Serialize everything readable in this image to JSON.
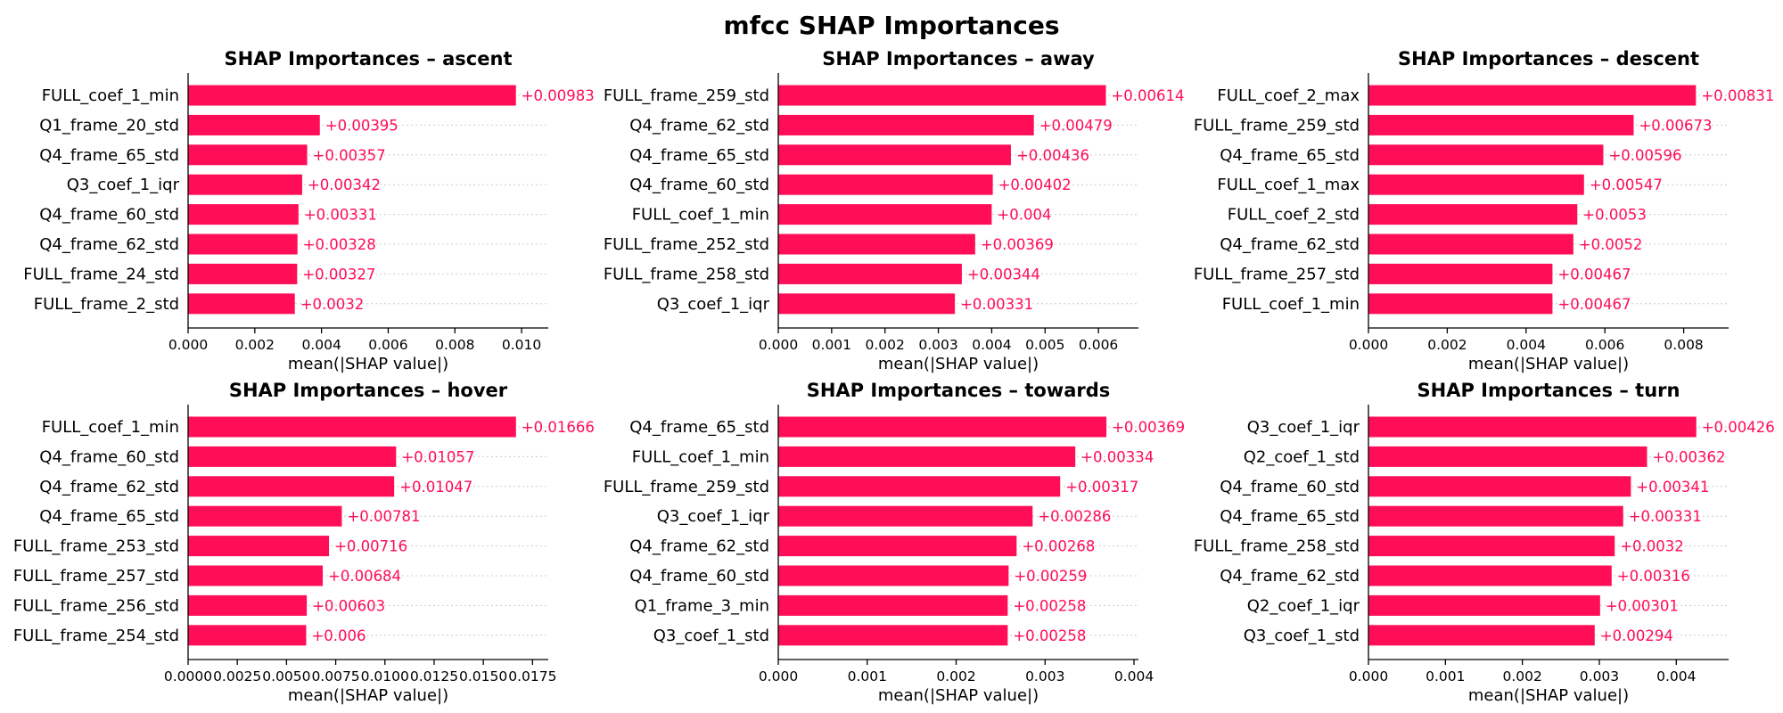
{
  "chart_data": {
    "title": "mfcc SHAP Importances",
    "bar_color": "#ff0d57",
    "label_color": "#ff0d57",
    "panels": [
      {
        "type": "bar",
        "orientation": "horizontal",
        "title": "SHAP Importances – ascent",
        "xlabel": "mean(|SHAP value|)",
        "xlim": [
          0,
          0.0108
        ],
        "xticks": [
          0,
          0.002,
          0.004,
          0.006,
          0.008,
          0.01
        ],
        "xtick_labels": [
          "0.000",
          "0.002",
          "0.004",
          "0.006",
          "0.008",
          "0.010"
        ],
        "categories": [
          "FULL_coef_1_min",
          "Q1_frame_20_std",
          "Q4_frame_65_std",
          "Q3_coef_1_iqr",
          "Q4_frame_60_std",
          "Q4_frame_62_std",
          "FULL_frame_24_std",
          "FULL_frame_2_std"
        ],
        "values": [
          0.00983,
          0.00395,
          0.00357,
          0.00342,
          0.00331,
          0.00328,
          0.00327,
          0.0032
        ],
        "value_labels": [
          "+0.00983",
          "+0.00395",
          "+0.00357",
          "+0.00342",
          "+0.00331",
          "+0.00328",
          "+0.00327",
          "+0.0032"
        ]
      },
      {
        "type": "bar",
        "orientation": "horizontal",
        "title": "SHAP Importances – away",
        "xlabel": "mean(|SHAP value|)",
        "xlim": [
          0,
          0.00675
        ],
        "xticks": [
          0,
          0.001,
          0.002,
          0.003,
          0.004,
          0.005,
          0.006
        ],
        "xtick_labels": [
          "0.000",
          "0.001",
          "0.002",
          "0.003",
          "0.004",
          "0.005",
          "0.006"
        ],
        "categories": [
          "FULL_frame_259_std",
          "Q4_frame_62_std",
          "Q4_frame_65_std",
          "Q4_frame_60_std",
          "FULL_coef_1_min",
          "FULL_frame_252_std",
          "FULL_frame_258_std",
          "Q3_coef_1_iqr"
        ],
        "values": [
          0.00614,
          0.00479,
          0.00436,
          0.00402,
          0.004,
          0.00369,
          0.00344,
          0.00331
        ],
        "value_labels": [
          "+0.00614",
          "+0.00479",
          "+0.00436",
          "+0.00402",
          "+0.004",
          "+0.00369",
          "+0.00344",
          "+0.00331"
        ]
      },
      {
        "type": "bar",
        "orientation": "horizontal",
        "title": "SHAP Importances – descent",
        "xlabel": "mean(|SHAP value|)",
        "xlim": [
          0,
          0.00914
        ],
        "xticks": [
          0,
          0.002,
          0.004,
          0.006,
          0.008
        ],
        "xtick_labels": [
          "0.000",
          "0.002",
          "0.004",
          "0.006",
          "0.008"
        ],
        "categories": [
          "FULL_coef_2_max",
          "FULL_frame_259_std",
          "Q4_frame_65_std",
          "FULL_coef_1_max",
          "FULL_coef_2_std",
          "Q4_frame_62_std",
          "FULL_frame_257_std",
          "FULL_coef_1_min"
        ],
        "values": [
          0.00831,
          0.00673,
          0.00596,
          0.00547,
          0.0053,
          0.0052,
          0.00467,
          0.00467
        ],
        "value_labels": [
          "+0.00831",
          "+0.00673",
          "+0.00596",
          "+0.00547",
          "+0.0053",
          "+0.0052",
          "+0.00467",
          "+0.00467"
        ]
      },
      {
        "type": "bar",
        "orientation": "horizontal",
        "title": "SHAP Importances – hover",
        "xlabel": "mean(|SHAP value|)",
        "xlim": [
          0,
          0.0183
        ],
        "xticks": [
          0,
          0.0025,
          0.005,
          0.0075,
          0.01,
          0.0125,
          0.015,
          0.0175
        ],
        "xtick_labels": [
          "0.0000",
          "0.0025",
          "0.0050",
          "0.0075",
          "0.0100",
          "0.0125",
          "0.0150",
          "0.0175"
        ],
        "categories": [
          "FULL_coef_1_min",
          "Q4_frame_60_std",
          "Q4_frame_62_std",
          "Q4_frame_65_std",
          "FULL_frame_253_std",
          "FULL_frame_257_std",
          "FULL_frame_256_std",
          "FULL_frame_254_std"
        ],
        "values": [
          0.01666,
          0.01057,
          0.01047,
          0.00781,
          0.00716,
          0.00684,
          0.00603,
          0.006
        ],
        "value_labels": [
          "+0.01666",
          "+0.01057",
          "+0.01047",
          "+0.00781",
          "+0.00716",
          "+0.00684",
          "+0.00603",
          "+0.006"
        ]
      },
      {
        "type": "bar",
        "orientation": "horizontal",
        "title": "SHAP Importances – towards",
        "xlabel": "mean(|SHAP value|)",
        "xlim": [
          0,
          0.00405
        ],
        "xticks": [
          0,
          0.001,
          0.002,
          0.003,
          0.004
        ],
        "xtick_labels": [
          "0.000",
          "0.001",
          "0.002",
          "0.003",
          "0.004"
        ],
        "categories": [
          "Q4_frame_65_std",
          "FULL_coef_1_min",
          "FULL_frame_259_std",
          "Q3_coef_1_iqr",
          "Q4_frame_62_std",
          "Q4_frame_60_std",
          "Q1_frame_3_min",
          "Q3_coef_1_std"
        ],
        "values": [
          0.00369,
          0.00334,
          0.00317,
          0.00286,
          0.00268,
          0.00259,
          0.00258,
          0.00258
        ],
        "value_labels": [
          "+0.00369",
          "+0.00334",
          "+0.00317",
          "+0.00286",
          "+0.00268",
          "+0.00259",
          "+0.00258",
          "+0.00258"
        ]
      },
      {
        "type": "bar",
        "orientation": "horizontal",
        "title": "SHAP Importances – turn",
        "xlabel": "mean(|SHAP value|)",
        "xlim": [
          0,
          0.00468
        ],
        "xticks": [
          0,
          0.001,
          0.002,
          0.003,
          0.004
        ],
        "xtick_labels": [
          "0.000",
          "0.001",
          "0.002",
          "0.003",
          "0.004"
        ],
        "categories": [
          "Q3_coef_1_iqr",
          "Q2_coef_1_std",
          "Q4_frame_60_std",
          "Q4_frame_65_std",
          "FULL_frame_258_std",
          "Q4_frame_62_std",
          "Q2_coef_1_iqr",
          "Q3_coef_1_std"
        ],
        "values": [
          0.00426,
          0.00362,
          0.00341,
          0.00331,
          0.0032,
          0.00316,
          0.00301,
          0.00294
        ],
        "value_labels": [
          "+0.00426",
          "+0.00362",
          "+0.00341",
          "+0.00331",
          "+0.0032",
          "+0.00316",
          "+0.00301",
          "+0.00294"
        ]
      }
    ]
  }
}
